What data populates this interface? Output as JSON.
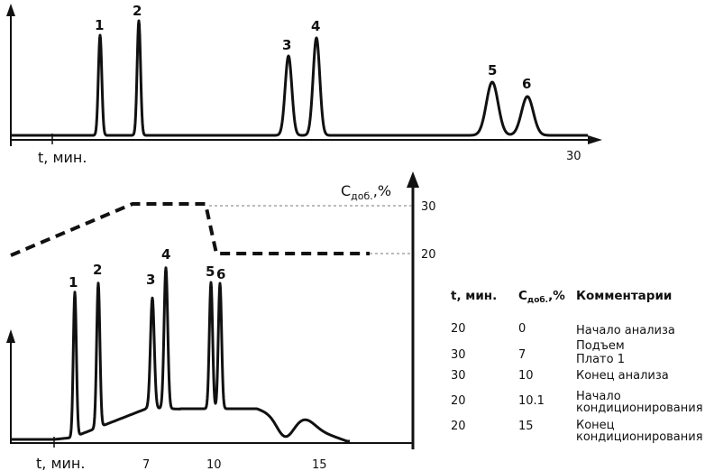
{
  "top_chart": {
    "x_label": "t, мин.",
    "x_tick_label": "30",
    "peak_labels": [
      "1",
      "2",
      "3",
      "4",
      "5",
      "6"
    ]
  },
  "bottom_chart": {
    "x_label": "t, мин.",
    "x_tick_labels": [
      "7",
      "10",
      "15"
    ],
    "peak_labels": [
      "1",
      "2",
      "3",
      "4",
      "5",
      "6"
    ],
    "gradient_axis_label": "C",
    "gradient_axis_sub": "доб.",
    "gradient_axis_unit": ",%",
    "gradient_ticks": [
      "30",
      "20"
    ]
  },
  "table": {
    "headers": {
      "time": "t, мин.",
      "conc": "C",
      "conc_sub": "доб.",
      "conc_unit": ",%",
      "comment": "Комментарии"
    },
    "rows": [
      {
        "time": "20",
        "conc": "0",
        "comment": [
          "Начало анализа"
        ]
      },
      {
        "time": "30",
        "conc": "7",
        "comment": [
          "Подъем",
          "Плато 1"
        ]
      },
      {
        "time": "30",
        "conc": "10",
        "comment": [
          "Конец анализа"
        ]
      },
      {
        "time": "20",
        "conc": "10.1",
        "comment": [
          "Начало",
          "кондиционирования"
        ]
      },
      {
        "time": "20",
        "conc": "15",
        "comment": [
          "Конец",
          "кондиционирования"
        ]
      }
    ]
  }
}
